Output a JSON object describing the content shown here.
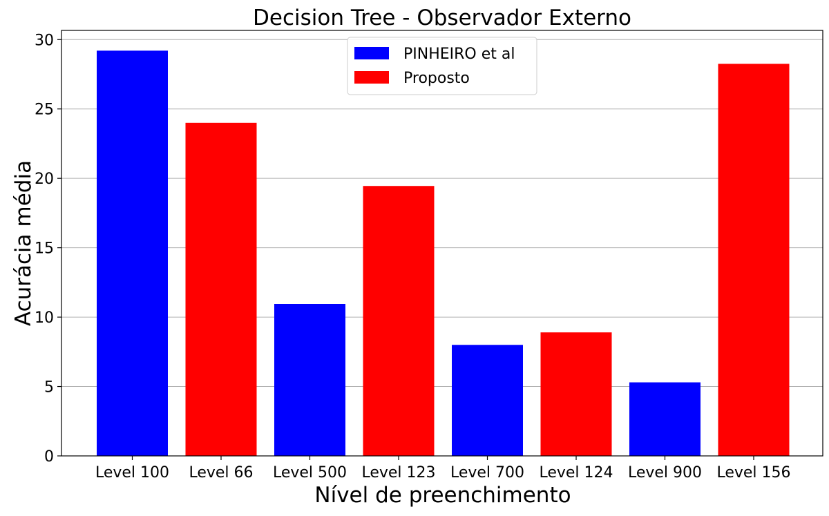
{
  "chart_data": {
    "type": "bar",
    "title": "Decision Tree - Observador Externo",
    "xlabel": "Nível de preenchimento",
    "ylabel": "Acurácia média",
    "categories": [
      "Level 100",
      "Level 66",
      "Level 500",
      "Level 123",
      "Level 700",
      "Level 124",
      "Level 900",
      "Level 156"
    ],
    "values": [
      29.2,
      24.0,
      10.95,
      19.45,
      8.0,
      8.9,
      5.3,
      28.25
    ],
    "bar_series": [
      "PINHEIRO et al",
      "Proposto",
      "PINHEIRO et al",
      "Proposto",
      "PINHEIRO et al",
      "Proposto",
      "PINHEIRO et al",
      "Proposto"
    ],
    "series": [
      {
        "name": "PINHEIRO et al",
        "color": "#0000ff"
      },
      {
        "name": "Proposto",
        "color": "#ff0000"
      }
    ],
    "ylim": [
      0,
      30.66
    ],
    "yticks": [
      "0",
      "5",
      "10",
      "15",
      "20",
      "25",
      "30"
    ],
    "grid": "horizontal",
    "legend_position": "top-center"
  }
}
